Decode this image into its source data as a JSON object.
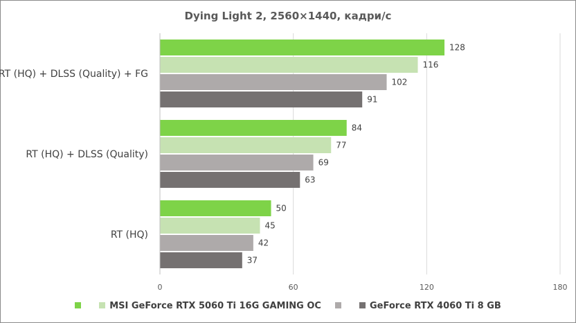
{
  "chart_data": {
    "type": "bar",
    "orientation": "horizontal",
    "title": "Dying Light 2, 2560×1440, кадри/с",
    "categories": [
      "RT (HQ) + DLSS (Quality) + FG",
      "RT (HQ) + DLSS (Quality)",
      "RT (HQ)"
    ],
    "series": [
      {
        "name": "",
        "color": "#7ed348",
        "values": [
          128,
          84,
          50
        ]
      },
      {
        "name": "MSI GeForce RTX 5060 Ti 16G GAMING OC",
        "color": "#c6e2b2",
        "values": [
          116,
          77,
          45
        ]
      },
      {
        "name": "",
        "color": "#aeaaaa",
        "values": [
          102,
          69,
          42
        ]
      },
      {
        "name": "GeForce RTX 4060 Ti 8 GB",
        "color": "#757171",
        "values": [
          91,
          63,
          37
        ]
      }
    ],
    "xlim": [
      0,
      180
    ],
    "xticks": [
      0,
      60,
      120,
      180
    ],
    "grid": true,
    "legend_position": "bottom"
  }
}
